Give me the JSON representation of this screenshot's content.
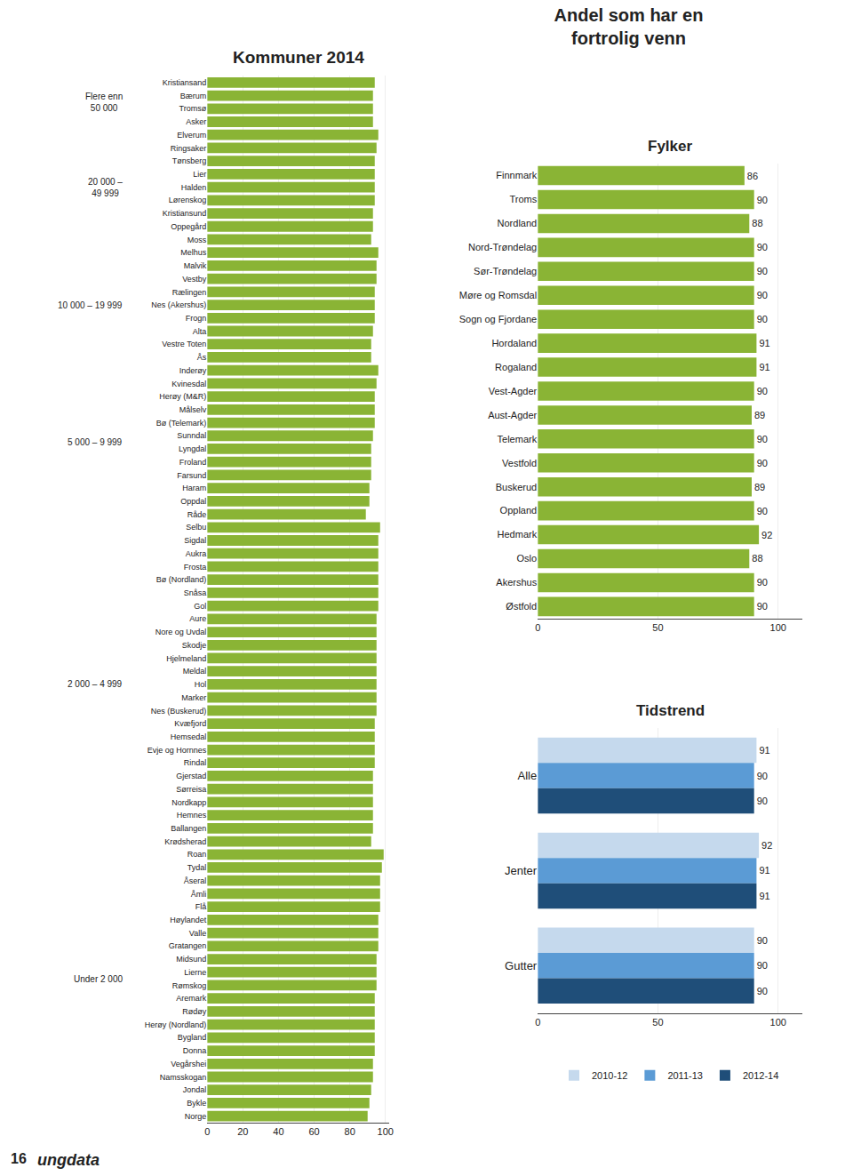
{
  "title": "Andel som har en\nfortrolig venn",
  "annotations": [
    {
      "text": "16"
    },
    {
      "text": "ungdata"
    }
  ],
  "chart_data": [
    {
      "type": "bar",
      "orientation": "horizontal",
      "title": "Kommuner 2014",
      "categories": [
        "Kristiansand",
        "Bærum",
        "Tromsø",
        "Asker",
        "Elverum",
        "Ringsaker",
        "Tønsberg",
        "Lier",
        "Halden",
        "Lørenskog",
        "Kristiansund",
        "Oppegård",
        "Moss",
        "Melhus",
        "Malvik",
        "Vestby",
        "Rælingen",
        "Nes (Akershus)",
        "Frogn",
        "Alta",
        "Vestre Toten",
        "Ås",
        "Inderøy",
        "Kvinesdal",
        "Herøy (M&R)",
        "Målselv",
        "Bø (Telemark)",
        "Sunndal",
        "Lyngdal",
        "Froland",
        "Farsund",
        "Haram",
        "Oppdal",
        "Råde",
        "Selbu",
        "Sigdal",
        "Aukra",
        "Frosta",
        "Bø (Nordland)",
        "Snåsa",
        "Gol",
        "Aure",
        "Nore og Uvdal",
        "Skodje",
        "Hjelmeland",
        "Meldal",
        "Hol",
        "Marker",
        "Nes (Buskerud)",
        "Kvæfjord",
        "Hemsedal",
        "Evje og Hornnes",
        "Rindal",
        "Gjerstad",
        "Sørreisa",
        "Nordkapp",
        "Hemnes",
        "Ballangen",
        "Krødsherad",
        "Roan",
        "Tydal",
        "Åseral",
        "Åmli",
        "Flå",
        "Høylandet",
        "Valle",
        "Gratangen",
        "Midsund",
        "Lierne",
        "Rømskog",
        "Aremark",
        "Rødøy",
        "Herøy (Nordland)",
        "Bygland",
        "Donna",
        "Vegårshei",
        "Namsskogan",
        "Jondal",
        "Bykle",
        "Norge"
      ],
      "values": [
        94,
        93,
        93,
        93,
        96,
        95,
        94,
        94,
        94,
        94,
        93,
        93,
        92,
        96,
        95,
        95,
        94,
        94,
        94,
        93,
        92,
        92,
        96,
        95,
        94,
        94,
        94,
        93,
        92,
        92,
        92,
        91,
        91,
        89,
        97,
        96,
        96,
        96,
        96,
        96,
        96,
        95,
        95,
        95,
        95,
        95,
        95,
        95,
        95,
        94,
        94,
        94,
        94,
        93,
        93,
        93,
        93,
        93,
        92,
        99,
        98,
        97,
        97,
        97,
        96,
        96,
        96,
        95,
        95,
        95,
        94,
        94,
        94,
        94,
        94,
        93,
        93,
        92,
        91,
        90
      ],
      "color": "#8ab435",
      "xlim": [
        0,
        102
      ],
      "xticks": [
        0,
        20,
        40,
        60,
        80,
        100
      ],
      "grid": true,
      "annotations": [
        {
          "text": "Flere enn\n50 000",
          "from": "Kristiansand",
          "to": "Asker"
        },
        {
          "text": "20 000 –\n49 999",
          "from": "Elverum",
          "to": "Moss"
        },
        {
          "text": "10 000 – 19 999",
          "from": "Melhus",
          "to": "Ås"
        },
        {
          "text": "5 000 – 9 999",
          "from": "Inderøy",
          "to": "Råde"
        },
        {
          "text": "2 000 – 4 999",
          "from": "Selbu",
          "to": "Krødsherad"
        },
        {
          "text": "Under 2 000",
          "from": "Roan",
          "to": "Bykle"
        }
      ]
    },
    {
      "type": "bar",
      "orientation": "horizontal",
      "title": "Fylker",
      "categories": [
        "Finnmark",
        "Troms",
        "Nordland",
        "Nord-Trøndelag",
        "Sør-Trøndelag",
        "Møre og Romsdal",
        "Sogn og Fjordane",
        "Hordaland",
        "Rogaland",
        "Vest-Agder",
        "Aust-Agder",
        "Telemark",
        "Vestfold",
        "Buskerud",
        "Oppland",
        "Hedmark",
        "Oslo",
        "Akershus",
        "Østfold"
      ],
      "values": [
        86,
        90,
        88,
        90,
        90,
        90,
        90,
        91,
        91,
        90,
        89,
        90,
        90,
        89,
        90,
        92,
        88,
        90,
        90
      ],
      "color": "#8ab435",
      "xlim": [
        0,
        110
      ],
      "xticks": [
        0,
        50,
        100
      ],
      "grid": true,
      "data_labels": true
    },
    {
      "type": "bar",
      "orientation": "horizontal",
      "title": "Tidstrend",
      "categories": [
        "Alle",
        "Jenter",
        "Gutter"
      ],
      "series": [
        {
          "name": "2010-12",
          "color": "#c5d9ed",
          "values": [
            91,
            92,
            90
          ]
        },
        {
          "name": "2011-13",
          "color": "#5b9bd5",
          "values": [
            90,
            91,
            90
          ]
        },
        {
          "name": "2012-14",
          "color": "#1f4e79",
          "values": [
            90,
            91,
            90
          ]
        }
      ],
      "xlim": [
        0,
        110
      ],
      "xticks": [
        0,
        50,
        100
      ],
      "grid": true,
      "data_labels": true,
      "legend": "bottom"
    }
  ]
}
